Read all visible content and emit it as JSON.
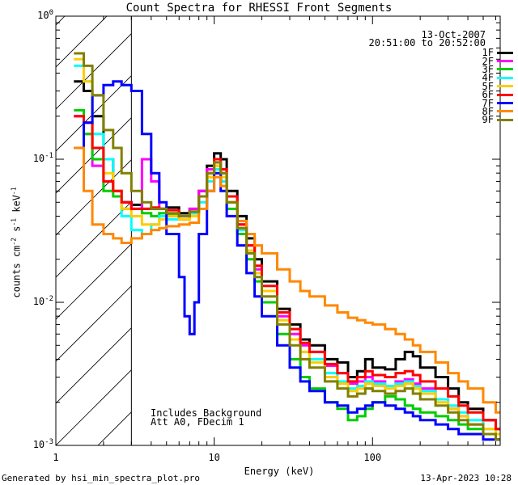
{
  "chart_data": {
    "type": "line",
    "title": "Count Spectra for RHESSI Front Segments",
    "xlabel": "Energy (keV)",
    "ylabel": "counts cm",
    "ylabel_parts": {
      "base": "counts cm",
      "exp1": "-2",
      "mid1": " s",
      "exp2": "-1",
      "mid2": " keV",
      "exp3": "-1"
    },
    "xscale": "log",
    "yscale": "log",
    "xlim": [
      1,
      640
    ],
    "ylim": [
      0.001,
      1
    ],
    "x_ticks": [
      {
        "value": 1,
        "label": "1"
      },
      {
        "value": 10,
        "label": "10"
      },
      {
        "value": 100,
        "label": "100"
      }
    ],
    "y_ticks": [
      {
        "value": 1,
        "base": "10",
        "exp": "0"
      },
      {
        "value": 0.1,
        "base": "10",
        "exp": "-1"
      },
      {
        "value": 0.01,
        "base": "10",
        "exp": "-2"
      },
      {
        "value": 0.001,
        "base": "10",
        "exp": "-3"
      }
    ],
    "date": "13-Oct-2007",
    "time_range": "20:51:00 to 20:52:00",
    "annotations": [
      "Includes Background",
      "Att A0, FDecim 1"
    ],
    "background_cutoff_keV": 3,
    "series": [
      {
        "name": "1F",
        "color": "#000000",
        "x": [
          1.3,
          1.5,
          1.7,
          2.0,
          2.3,
          2.6,
          3.0,
          3.5,
          4.0,
          4.5,
          5.0,
          6.0,
          7.0,
          8.0,
          9.0,
          10.0,
          11.0,
          12.0,
          14.0,
          16.0,
          18.0,
          20.0,
          25.0,
          30.0,
          35.0,
          40.0,
          50.0,
          60.0,
          70.0,
          80.0,
          90.0,
          100.0,
          120.0,
          140.0,
          160.0,
          180.0,
          200.0,
          250.0,
          300.0,
          350.0,
          400.0,
          500.0,
          600.0
        ],
        "y": [
          0.35,
          0.3,
          0.2,
          0.1,
          0.06,
          0.05,
          0.048,
          0.045,
          0.045,
          0.045,
          0.046,
          0.042,
          0.045,
          0.06,
          0.09,
          0.11,
          0.1,
          0.06,
          0.04,
          0.028,
          0.02,
          0.014,
          0.009,
          0.007,
          0.0055,
          0.005,
          0.004,
          0.0038,
          0.003,
          0.0033,
          0.004,
          0.0035,
          0.0034,
          0.004,
          0.0045,
          0.0042,
          0.0035,
          0.003,
          0.0025,
          0.002,
          0.0018,
          0.0015,
          0.0013
        ]
      },
      {
        "name": "2F",
        "color": "#ff00ff",
        "x": [
          1.3,
          1.5,
          1.7,
          2.0,
          2.3,
          2.6,
          3.0,
          3.5,
          4.0,
          4.5,
          5.0,
          6.0,
          7.0,
          8.0,
          9.0,
          10.0,
          11.0,
          12.0,
          14.0,
          16.0,
          18.0,
          20.0,
          25.0,
          30.0,
          35.0,
          40.0,
          50.0,
          60.0,
          70.0,
          80.0,
          90.0,
          100.0,
          120.0,
          140.0,
          160.0,
          180.0,
          200.0,
          250.0,
          300.0,
          350.0,
          400.0,
          500.0,
          600.0
        ],
        "y": [
          0.2,
          0.15,
          0.09,
          0.07,
          0.06,
          0.05,
          0.045,
          0.1,
          0.07,
          0.045,
          0.04,
          0.038,
          0.045,
          0.06,
          0.085,
          0.095,
          0.08,
          0.055,
          0.035,
          0.025,
          0.017,
          0.012,
          0.008,
          0.006,
          0.005,
          0.0045,
          0.0036,
          0.0032,
          0.0027,
          0.0028,
          0.003,
          0.0028,
          0.0026,
          0.0028,
          0.0029,
          0.0027,
          0.0025,
          0.0021,
          0.0018,
          0.0016,
          0.0014,
          0.0012,
          0.0011
        ]
      },
      {
        "name": "3F",
        "color": "#00cc00",
        "x": [
          1.3,
          1.5,
          1.7,
          2.0,
          2.3,
          2.6,
          3.0,
          3.5,
          4.0,
          4.5,
          5.0,
          6.0,
          7.0,
          8.0,
          9.0,
          10.0,
          11.0,
          12.0,
          14.0,
          16.0,
          18.0,
          20.0,
          25.0,
          30.0,
          35.0,
          40.0,
          50.0,
          60.0,
          70.0,
          80.0,
          90.0,
          100.0,
          120.0,
          140.0,
          160.0,
          180.0,
          200.0,
          250.0,
          300.0,
          350.0,
          400.0,
          500.0,
          600.0
        ],
        "y": [
          0.22,
          0.15,
          0.1,
          0.06,
          0.055,
          0.045,
          0.045,
          0.042,
          0.04,
          0.042,
          0.041,
          0.04,
          0.042,
          0.055,
          0.075,
          0.09,
          0.07,
          0.045,
          0.03,
          0.02,
          0.014,
          0.01,
          0.006,
          0.004,
          0.003,
          0.0025,
          0.002,
          0.0018,
          0.0015,
          0.0016,
          0.0018,
          0.002,
          0.0022,
          0.0021,
          0.0019,
          0.0018,
          0.0017,
          0.0016,
          0.0015,
          0.0014,
          0.0013,
          0.0012,
          0.0011
        ]
      },
      {
        "name": "4F",
        "color": "#00ffff",
        "x": [
          1.3,
          1.5,
          1.7,
          2.0,
          2.3,
          2.6,
          3.0,
          3.5,
          4.0,
          4.5,
          5.0,
          6.0,
          7.0,
          8.0,
          9.0,
          10.0,
          11.0,
          12.0,
          14.0,
          16.0,
          18.0,
          20.0,
          25.0,
          30.0,
          35.0,
          40.0,
          50.0,
          60.0,
          70.0,
          80.0,
          90.0,
          100.0,
          120.0,
          140.0,
          160.0,
          180.0,
          200.0,
          250.0,
          300.0,
          350.0,
          400.0,
          500.0,
          600.0
        ],
        "y": [
          0.45,
          0.35,
          0.15,
          0.1,
          0.06,
          0.04,
          0.032,
          0.03,
          0.035,
          0.04,
          0.038,
          0.04,
          0.042,
          0.05,
          0.07,
          0.085,
          0.07,
          0.05,
          0.032,
          0.022,
          0.016,
          0.012,
          0.0075,
          0.0055,
          0.0045,
          0.004,
          0.0032,
          0.0028,
          0.0025,
          0.0026,
          0.0028,
          0.0027,
          0.0026,
          0.0027,
          0.0028,
          0.0026,
          0.0024,
          0.0021,
          0.0019,
          0.0017,
          0.0015,
          0.0013,
          0.0012
        ]
      },
      {
        "name": "5F",
        "color": "#ffcc00",
        "x": [
          1.3,
          1.5,
          1.7,
          2.0,
          2.3,
          2.6,
          3.0,
          3.5,
          4.0,
          4.5,
          5.0,
          6.0,
          7.0,
          8.0,
          9.0,
          10.0,
          11.0,
          12.0,
          14.0,
          16.0,
          18.0,
          20.0,
          25.0,
          30.0,
          35.0,
          40.0,
          50.0,
          60.0,
          70.0,
          80.0,
          90.0,
          100.0,
          120.0,
          140.0,
          160.0,
          180.0,
          200.0,
          250.0,
          300.0,
          350.0,
          400.0,
          500.0,
          600.0
        ],
        "y": [
          0.5,
          0.35,
          0.12,
          0.08,
          0.06,
          0.045,
          0.04,
          0.035,
          0.035,
          0.038,
          0.04,
          0.038,
          0.04,
          0.055,
          0.075,
          0.09,
          0.075,
          0.05,
          0.033,
          0.023,
          0.016,
          0.012,
          0.0075,
          0.0055,
          0.0045,
          0.0038,
          0.003,
          0.0027,
          0.0024,
          0.0025,
          0.0027,
          0.0026,
          0.0025,
          0.0026,
          0.0027,
          0.0025,
          0.0023,
          0.002,
          0.0018,
          0.0016,
          0.0014,
          0.0013,
          0.0012
        ]
      },
      {
        "name": "6F",
        "color": "#ff0000",
        "x": [
          1.3,
          1.5,
          1.7,
          2.0,
          2.3,
          2.6,
          3.0,
          3.5,
          4.0,
          4.5,
          5.0,
          6.0,
          7.0,
          8.0,
          9.0,
          10.0,
          11.0,
          12.0,
          14.0,
          16.0,
          18.0,
          20.0,
          25.0,
          30.0,
          35.0,
          40.0,
          50.0,
          60.0,
          70.0,
          80.0,
          90.0,
          100.0,
          120.0,
          140.0,
          160.0,
          180.0,
          200.0,
          250.0,
          300.0,
          350.0,
          400.0,
          500.0,
          600.0
        ],
        "y": [
          0.2,
          0.18,
          0.12,
          0.07,
          0.06,
          0.05,
          0.045,
          0.045,
          0.046,
          0.045,
          0.044,
          0.04,
          0.043,
          0.055,
          0.08,
          0.1,
          0.085,
          0.055,
          0.035,
          0.025,
          0.018,
          0.013,
          0.0085,
          0.0065,
          0.0052,
          0.0045,
          0.0037,
          0.0032,
          0.0028,
          0.003,
          0.0033,
          0.0031,
          0.003,
          0.0032,
          0.0033,
          0.0031,
          0.0028,
          0.0025,
          0.0022,
          0.0019,
          0.0017,
          0.0015,
          0.0013
        ]
      },
      {
        "name": "7F",
        "color": "#0000ff",
        "x": [
          1.3,
          1.5,
          1.7,
          2.0,
          2.3,
          2.6,
          3.0,
          3.5,
          4.0,
          4.5,
          5.0,
          6.0,
          6.5,
          7.0,
          7.5,
          8.0,
          9.0,
          10.0,
          11.0,
          12.0,
          14.0,
          16.0,
          18.0,
          20.0,
          25.0,
          30.0,
          35.0,
          40.0,
          50.0,
          60.0,
          70.0,
          80.0,
          90.0,
          100.0,
          120.0,
          140.0,
          160.0,
          180.0,
          200.0,
          250.0,
          300.0,
          350.0,
          400.0,
          500.0,
          600.0
        ],
        "y": [
          0.12,
          0.18,
          0.28,
          0.33,
          0.35,
          0.33,
          0.3,
          0.15,
          0.08,
          0.05,
          0.03,
          0.015,
          0.008,
          0.006,
          0.01,
          0.03,
          0.06,
          0.08,
          0.06,
          0.04,
          0.025,
          0.016,
          0.011,
          0.008,
          0.005,
          0.0035,
          0.0028,
          0.0024,
          0.002,
          0.0019,
          0.0017,
          0.0018,
          0.0019,
          0.002,
          0.0019,
          0.0018,
          0.0017,
          0.0016,
          0.0015,
          0.0014,
          0.0013,
          0.0012,
          0.0012,
          0.0011,
          0.0011
        ]
      },
      {
        "name": "8F",
        "color": "#ff8800",
        "x": [
          1.3,
          1.5,
          1.7,
          2.0,
          2.3,
          2.6,
          3.0,
          3.5,
          4.0,
          4.5,
          5.0,
          6.0,
          7.0,
          8.0,
          9.0,
          10.0,
          11.0,
          12.0,
          14.0,
          16.0,
          18.0,
          20.0,
          25.0,
          30.0,
          35.0,
          40.0,
          50.0,
          60.0,
          70.0,
          80.0,
          90.0,
          100.0,
          120.0,
          140.0,
          160.0,
          180.0,
          200.0,
          250.0,
          300.0,
          350.0,
          400.0,
          500.0,
          600.0
        ],
        "y": [
          0.12,
          0.06,
          0.035,
          0.03,
          0.028,
          0.026,
          0.028,
          0.03,
          0.032,
          0.033,
          0.034,
          0.035,
          0.036,
          0.045,
          0.06,
          0.075,
          0.065,
          0.05,
          0.037,
          0.03,
          0.025,
          0.022,
          0.017,
          0.014,
          0.012,
          0.011,
          0.0095,
          0.0085,
          0.0078,
          0.0075,
          0.0072,
          0.007,
          0.0065,
          0.006,
          0.0055,
          0.005,
          0.0045,
          0.0038,
          0.0032,
          0.0028,
          0.0025,
          0.002,
          0.0017
        ]
      },
      {
        "name": "9F",
        "color": "#808000",
        "x": [
          1.3,
          1.5,
          1.7,
          2.0,
          2.3,
          2.6,
          3.0,
          3.5,
          4.0,
          4.5,
          5.0,
          6.0,
          7.0,
          8.0,
          9.0,
          10.0,
          11.0,
          12.0,
          14.0,
          16.0,
          18.0,
          20.0,
          25.0,
          30.0,
          35.0,
          40.0,
          50.0,
          60.0,
          70.0,
          80.0,
          90.0,
          100.0,
          120.0,
          140.0,
          160.0,
          180.0,
          200.0,
          250.0,
          300.0,
          350.0,
          400.0,
          500.0,
          600.0
        ],
        "y": [
          0.55,
          0.45,
          0.28,
          0.16,
          0.12,
          0.08,
          0.06,
          0.05,
          0.045,
          0.045,
          0.042,
          0.04,
          0.043,
          0.055,
          0.08,
          0.095,
          0.08,
          0.05,
          0.033,
          0.022,
          0.015,
          0.011,
          0.007,
          0.005,
          0.004,
          0.0035,
          0.0028,
          0.0025,
          0.0022,
          0.0023,
          0.0025,
          0.0024,
          0.0023,
          0.0024,
          0.0025,
          0.0023,
          0.0021,
          0.0019,
          0.0017,
          0.0015,
          0.0014,
          0.0012,
          0.0011
        ]
      }
    ]
  },
  "footer": {
    "generated_by": "Generated by hsi_min_spectra_plot.pro",
    "timestamp": "13-Apr-2023 10:28"
  }
}
